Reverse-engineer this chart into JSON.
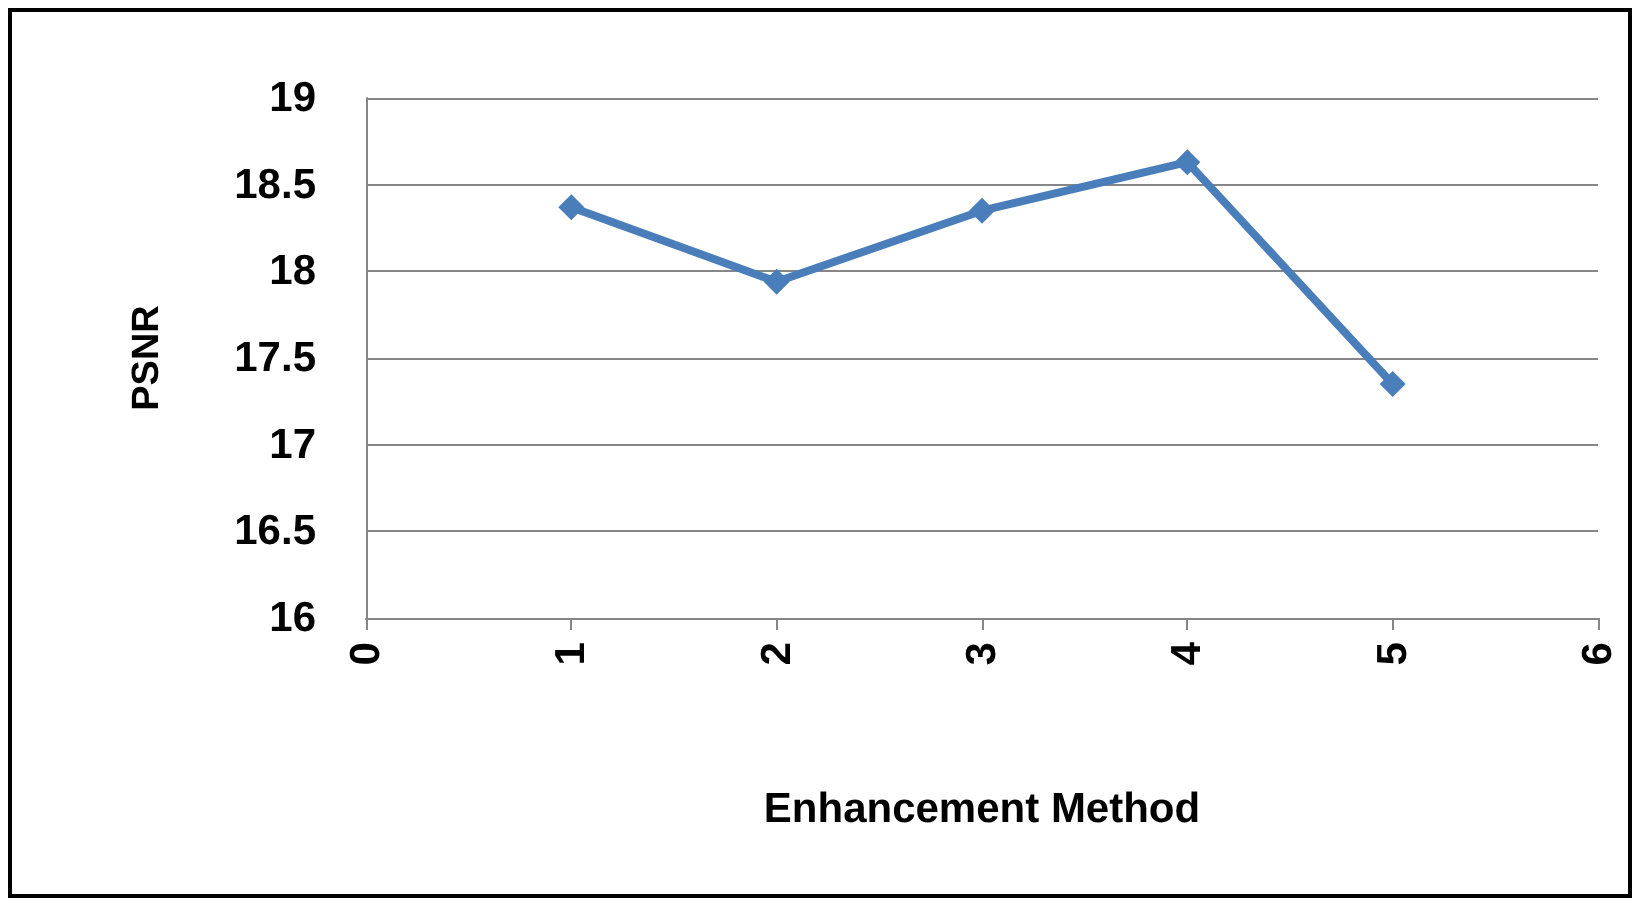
{
  "chart_data": {
    "type": "line",
    "xlabel": "Enhancement Method",
    "ylabel": "PSNR",
    "x": [
      1,
      2,
      3,
      4,
      5
    ],
    "series": [
      {
        "color": "#4a7ebb",
        "values": [
          18.37,
          17.94,
          18.35,
          18.63,
          17.35
        ]
      }
    ],
    "xlim": [
      0,
      6
    ],
    "xticks": [
      0,
      1,
      2,
      3,
      4,
      5,
      6
    ],
    "ylim": [
      16,
      19
    ],
    "yticks": [
      16,
      16.5,
      17,
      17.5,
      18,
      18.5,
      19
    ],
    "grid": "y",
    "marker": "diamond",
    "line_style": "solid"
  }
}
